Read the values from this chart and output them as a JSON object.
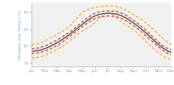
{
  "months": [
    "Jan",
    "Feb",
    "Mar",
    "Apr",
    "May",
    "Jun",
    "Jul",
    "Aug",
    "Sep",
    "Oct",
    "Nov",
    "Dec"
  ],
  "median": [
    18.5,
    19.2,
    21.0,
    23.5,
    26.5,
    29.0,
    29.8,
    29.2,
    27.0,
    24.0,
    20.5,
    18.2
  ],
  "p25": [
    17.8,
    18.5,
    20.2,
    22.8,
    25.8,
    28.2,
    29.0,
    28.4,
    26.2,
    23.2,
    19.8,
    17.5
  ],
  "p75": [
    19.2,
    20.0,
    21.8,
    24.2,
    27.2,
    29.8,
    30.5,
    30.0,
    27.8,
    24.8,
    21.2,
    19.0
  ],
  "min_val": [
    16.5,
    17.2,
    19.0,
    21.5,
    24.5,
    27.0,
    30.0,
    27.5,
    25.0,
    21.5,
    18.0,
    16.0
  ],
  "max_val": [
    20.5,
    21.5,
    23.5,
    26.0,
    30.0,
    31.5,
    32.0,
    31.5,
    29.5,
    27.0,
    23.5,
    20.5
  ],
  "median_color": "#555555",
  "p25_75_color": "#dd3322",
  "min_max_color": "#ffaa00",
  "ylabel": "Monthly Ave Temp (°C)",
  "ylim": [
    14.0,
    33.0
  ],
  "yticks": [
    15,
    20,
    25,
    30
  ],
  "tick_color": "#7baac7",
  "label_color": "#7baac7",
  "spine_color": "#aaaaaa",
  "bg_color": "#f0f0f0",
  "median_lw": 1.2,
  "band_lw": 1.0
}
